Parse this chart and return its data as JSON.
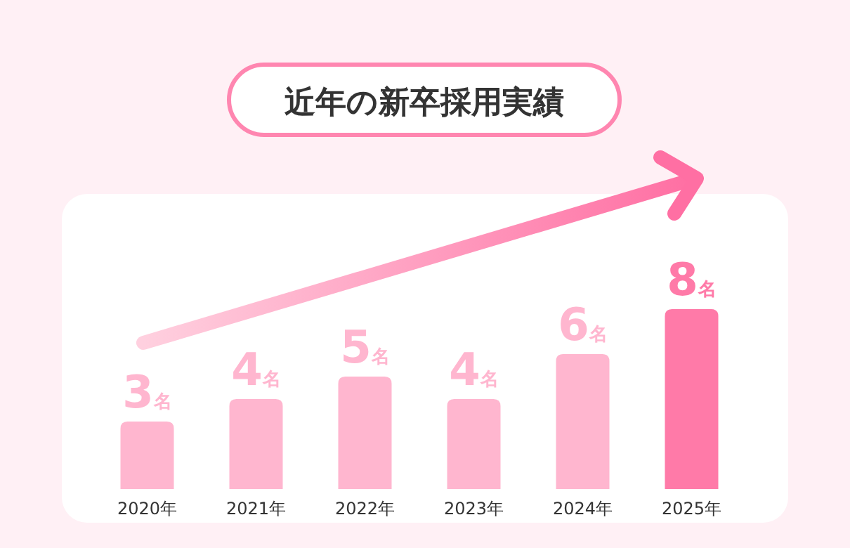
{
  "chart_data": {
    "type": "bar",
    "title": "近年の新卒採用実績",
    "categories": [
      "2020年",
      "2021年",
      "2022年",
      "2023年",
      "2024年",
      "2025年"
    ],
    "values": [
      3,
      4,
      5,
      4,
      6,
      8
    ],
    "colors": [
      "#ffb6cf",
      "#ffb6cf",
      "#ffb6cf",
      "#ffb6cf",
      "#ffb6cf",
      "#ff7aa8"
    ],
    "value_labels": [
      "3名",
      "4名",
      "5名",
      "4名",
      "6名",
      "8名"
    ]
  }
}
